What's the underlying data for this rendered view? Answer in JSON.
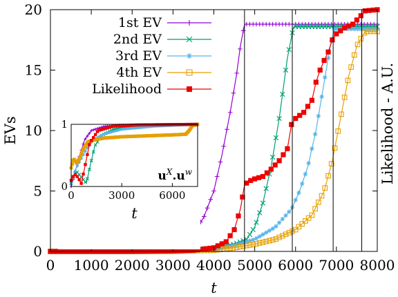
{
  "chart_data": [
    {
      "type": "line",
      "title": "",
      "xlabel": "t",
      "ylabel": "EVs",
      "ylabel_right": "Likelihood - A.U.",
      "xlim": [
        0,
        8000
      ],
      "ylim": [
        0,
        20
      ],
      "xticks": [
        0,
        1000,
        2000,
        3000,
        4000,
        5000,
        6000,
        7000,
        8000
      ],
      "yticks": [
        0,
        5,
        10,
        15,
        20
      ],
      "grid": false,
      "legend": "top-left",
      "vlines": [
        4750,
        5920,
        6920,
        7620,
        8000
      ],
      "series": [
        {
          "name": "1st EV",
          "color": "#9400d3",
          "marker": "plus",
          "points": [
            [
              0,
              0
            ],
            [
              1000,
              0
            ],
            [
              2000,
              0.05
            ],
            [
              2500,
              0.15
            ],
            [
              3000,
              0.4
            ],
            [
              3250,
              0.8
            ],
            [
              3500,
              1.5
            ],
            [
              3750,
              2.8
            ],
            [
              4000,
              5
            ],
            [
              4200,
              8
            ],
            [
              4400,
              11.5
            ],
            [
              4550,
              14.5
            ],
            [
              4650,
              17
            ],
            [
              4750,
              18.8
            ],
            [
              5000,
              18.8
            ],
            [
              8000,
              18.8
            ]
          ]
        },
        {
          "name": "2nd EV",
          "color": "#009e73",
          "marker": "cross",
          "points": [
            [
              0,
              0
            ],
            [
              2000,
              0
            ],
            [
              3000,
              0.05
            ],
            [
              3500,
              0.15
            ],
            [
              4000,
              0.3
            ],
            [
              4500,
              0.6
            ],
            [
              4800,
              1
            ],
            [
              5000,
              2
            ],
            [
              5200,
              4
            ],
            [
              5400,
              7
            ],
            [
              5600,
              11
            ],
            [
              5800,
              16
            ],
            [
              5950,
              18.6
            ],
            [
              6200,
              18.6
            ],
            [
              8000,
              18.6
            ]
          ]
        },
        {
          "name": "3rd EV",
          "color": "#56b4e9",
          "marker": "star",
          "points": [
            [
              0,
              0
            ],
            [
              3000,
              0
            ],
            [
              4000,
              0.2
            ],
            [
              4500,
              0.5
            ],
            [
              5000,
              1
            ],
            [
              5500,
              2
            ],
            [
              5900,
              3.5
            ],
            [
              6100,
              5
            ],
            [
              6300,
              7
            ],
            [
              6500,
              10
            ],
            [
              6700,
              14
            ],
            [
              6850,
              17
            ],
            [
              6950,
              18.4
            ],
            [
              7200,
              18.4
            ],
            [
              8000,
              18.4
            ]
          ]
        },
        {
          "name": "4th EV",
          "color": "#e69f00",
          "marker": "square-open",
          "points": [
            [
              0,
              0
            ],
            [
              3000,
              0
            ],
            [
              4000,
              0.1
            ],
            [
              4500,
              0.3
            ],
            [
              5000,
              0.6
            ],
            [
              5500,
              1
            ],
            [
              6000,
              1.8
            ],
            [
              6400,
              3
            ],
            [
              6700,
              5
            ],
            [
              6900,
              7.5
            ],
            [
              7100,
              11
            ],
            [
              7300,
              14.5
            ],
            [
              7500,
              17
            ],
            [
              7700,
              18.2
            ],
            [
              8000,
              18.2
            ]
          ]
        },
        {
          "name": "Likelihood",
          "color": "#ee0000",
          "marker": "square-filled",
          "points": [
            [
              0,
              0
            ],
            [
              1000,
              0
            ],
            [
              2000,
              0
            ],
            [
              3000,
              0.05
            ],
            [
              3500,
              0.1
            ],
            [
              4000,
              0.3
            ],
            [
              4300,
              0.8
            ],
            [
              4500,
              1.8
            ],
            [
              4650,
              3.5
            ],
            [
              4750,
              5.5
            ],
            [
              4850,
              5.8
            ],
            [
              5000,
              6
            ],
            [
              5200,
              6.2
            ],
            [
              5400,
              6.8
            ],
            [
              5600,
              7.5
            ],
            [
              5800,
              8.5
            ],
            [
              5900,
              10.5
            ],
            [
              6000,
              11
            ],
            [
              6200,
              11.5
            ],
            [
              6400,
              12.5
            ],
            [
              6500,
              14
            ],
            [
              6600,
              15
            ],
            [
              6700,
              15.8
            ],
            [
              6800,
              16.5
            ],
            [
              6900,
              17.5
            ],
            [
              7000,
              18
            ],
            [
              7200,
              18.5
            ],
            [
              7400,
              18.8
            ],
            [
              7600,
              19.5
            ],
            [
              7700,
              19.9
            ],
            [
              8000,
              20
            ]
          ]
        }
      ]
    },
    {
      "type": "line",
      "title": "",
      "xlabel": "t",
      "ylabel": "",
      "annotation": "u^X.u^w",
      "annotation_base": "u",
      "annotation_sup1": "X",
      "annotation_dot": ".",
      "annotation_sup2": "w",
      "xlim": [
        0,
        7500
      ],
      "ylim": [
        0,
        1
      ],
      "xticks": [
        0,
        3000,
        6000
      ],
      "yticks": [
        0,
        1
      ],
      "series": [
        {
          "color": "#9400d3",
          "points": [
            [
              0,
              0
            ],
            [
              200,
              0.2
            ],
            [
              500,
              0.5
            ],
            [
              800,
              0.75
            ],
            [
              1200,
              0.9
            ],
            [
              2000,
              0.97
            ],
            [
              3000,
              0.99
            ],
            [
              7500,
              1
            ]
          ]
        },
        {
          "color": "#009e73",
          "points": [
            [
              0,
              0.05
            ],
            [
              300,
              0.25
            ],
            [
              600,
              0.15
            ],
            [
              900,
              0.05
            ],
            [
              1100,
              0.3
            ],
            [
              1400,
              0.65
            ],
            [
              1800,
              0.82
            ],
            [
              2500,
              0.92
            ],
            [
              3500,
              0.97
            ],
            [
              5000,
              0.99
            ],
            [
              7500,
              1
            ]
          ]
        },
        {
          "color": "#56b4e9",
          "points": [
            [
              0,
              0.05
            ],
            [
              300,
              0.3
            ],
            [
              600,
              0.45
            ],
            [
              900,
              0.6
            ],
            [
              1300,
              0.75
            ],
            [
              2000,
              0.85
            ],
            [
              3000,
              0.92
            ],
            [
              5000,
              0.97
            ],
            [
              7500,
              1
            ]
          ]
        },
        {
          "color": "#e69f00",
          "points": [
            [
              0,
              0.3
            ],
            [
              150,
              0.45
            ],
            [
              300,
              0.38
            ],
            [
              500,
              0.45
            ],
            [
              700,
              0.6
            ],
            [
              1000,
              0.72
            ],
            [
              1500,
              0.76
            ],
            [
              2000,
              0.78
            ],
            [
              3000,
              0.8
            ],
            [
              4000,
              0.81
            ],
            [
              5000,
              0.82
            ],
            [
              6000,
              0.83
            ],
            [
              6800,
              0.84
            ],
            [
              7000,
              0.9
            ],
            [
              7200,
              0.98
            ],
            [
              7500,
              1
            ]
          ]
        },
        {
          "color": "#ee0000",
          "points": [
            [
              0,
              0.1
            ],
            [
              200,
              0.2
            ],
            [
              400,
              0.15
            ],
            [
              600,
              0.05
            ],
            [
              800,
              0.3
            ],
            [
              1100,
              0.7
            ],
            [
              1600,
              0.9
            ],
            [
              2500,
              0.97
            ],
            [
              4000,
              0.99
            ],
            [
              7500,
              1
            ]
          ]
        }
      ]
    }
  ]
}
